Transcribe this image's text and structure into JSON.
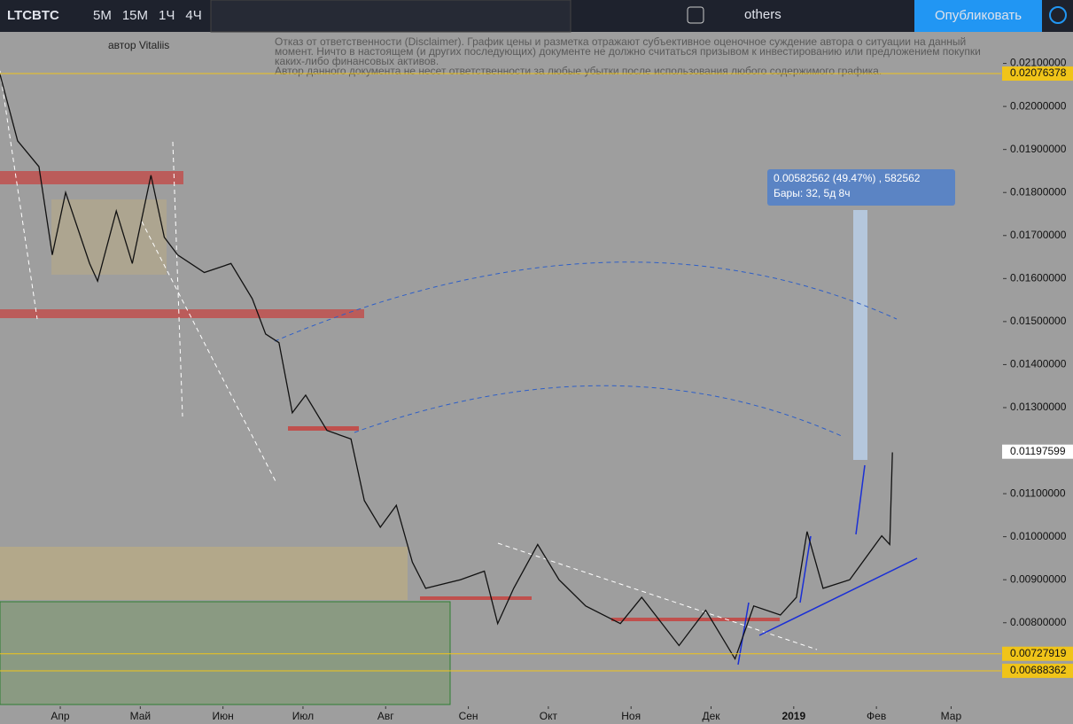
{
  "toolbar": {
    "symbol": "LTCBTC",
    "intervals": [
      {
        "label": "5М",
        "active": false
      },
      {
        "label": "15М",
        "active": false
      },
      {
        "label": "1Ч",
        "active": false
      },
      {
        "label": "4Ч",
        "active": true
      }
    ],
    "compare": "others",
    "publish": "Опубликовать"
  },
  "author": "автор Vitaliis",
  "disclaimer": [
    "Отказ от ответственности (Disclaimer). График цены и разметка отражают субъективное оценочное суждение автора о ситуации на данный",
    "момент. Ничто в настоящем (и других последующих) документе не должно считаться призывом к инвестированию или предложением покупки",
    "каких-либо финансовых активов.",
    "Автор данного документа не несет ответственности за любые убытки после использования любого содержимого графика."
  ],
  "measure": [
    "0.00582562 (49.47%) , 582562",
    "Бары: 32, 5д 8ч"
  ],
  "chart_data": {
    "type": "line",
    "ylim": [
      0.0061,
      0.02165
    ],
    "xlim": [
      -22.6,
      352.8
    ],
    "yticks": [
      {
        "value": 0.021,
        "label": "0.02100000"
      },
      {
        "value": 0.02,
        "label": "0.02000000"
      },
      {
        "value": 0.019,
        "label": "0.01900000"
      },
      {
        "value": 0.018,
        "label": "0.01800000"
      },
      {
        "value": 0.017,
        "label": "0.01700000"
      },
      {
        "value": 0.016,
        "label": "0.01600000"
      },
      {
        "value": 0.015,
        "label": "0.01500000"
      },
      {
        "value": 0.014,
        "label": "0.01400000"
      },
      {
        "value": 0.013,
        "label": "0.01300000"
      },
      {
        "value": 0.011,
        "label": "0.01100000"
      },
      {
        "value": 0.01,
        "label": "0.01000000"
      },
      {
        "value": 0.009,
        "label": "0.00900000"
      },
      {
        "value": 0.008,
        "label": "0.00800000"
      }
    ],
    "xticks": [
      {
        "value": 0,
        "label": "Апр"
      },
      {
        "value": 30,
        "label": "Май"
      },
      {
        "value": 61,
        "label": "Июн"
      },
      {
        "value": 91,
        "label": "Июл"
      },
      {
        "value": 122,
        "label": "Авг"
      },
      {
        "value": 153,
        "label": "Сен"
      },
      {
        "value": 183,
        "label": "Окт"
      },
      {
        "value": 214,
        "label": "Ноя"
      },
      {
        "value": 244,
        "label": "Дек"
      },
      {
        "value": 275,
        "label": "2019"
      },
      {
        "value": 306,
        "label": "Фев"
      },
      {
        "value": 334,
        "label": "Мар"
      }
    ],
    "price_lines": [
      {
        "value": 0.02076378,
        "color": "#f0c419"
      },
      {
        "value": 0.00727919,
        "color": "#f0c419"
      },
      {
        "value": 0.00688362,
        "color": "#f0c419"
      }
    ],
    "last_price": 0.01197599,
    "series": [
      {
        "name": "LTCBTC",
        "color": "#111111",
        "x": [
          -23,
          -16,
          -8,
          -3,
          2,
          11,
          14,
          21,
          27,
          34,
          39,
          44,
          54,
          64,
          72,
          77,
          82,
          87,
          92,
          100,
          109,
          114,
          120,
          126,
          132,
          137,
          150,
          159,
          164,
          170,
          179,
          187,
          197,
          210,
          218,
          232,
          242,
          253,
          260,
          270,
          276,
          280,
          286,
          296,
          308,
          311,
          312
        ],
        "values": [
          0.02084,
          0.0192,
          0.0186,
          0.01655,
          0.018,
          0.01635,
          0.01594,
          0.01757,
          0.01635,
          0.0184,
          0.01696,
          0.01655,
          0.01614,
          0.01635,
          0.01553,
          0.01471,
          0.01451,
          0.01288,
          0.01329,
          0.01247,
          0.01227,
          0.01084,
          0.01022,
          0.01073,
          0.00941,
          0.0088,
          0.009,
          0.0092,
          0.00798,
          0.0088,
          0.00982,
          0.009,
          0.00839,
          0.00798,
          0.00859,
          0.00747,
          0.00829,
          0.00716,
          0.00839,
          0.00818,
          0.00859,
          0.01012,
          0.0088,
          0.009,
          0.01002,
          0.00982,
          0.01196
        ]
      }
    ]
  }
}
